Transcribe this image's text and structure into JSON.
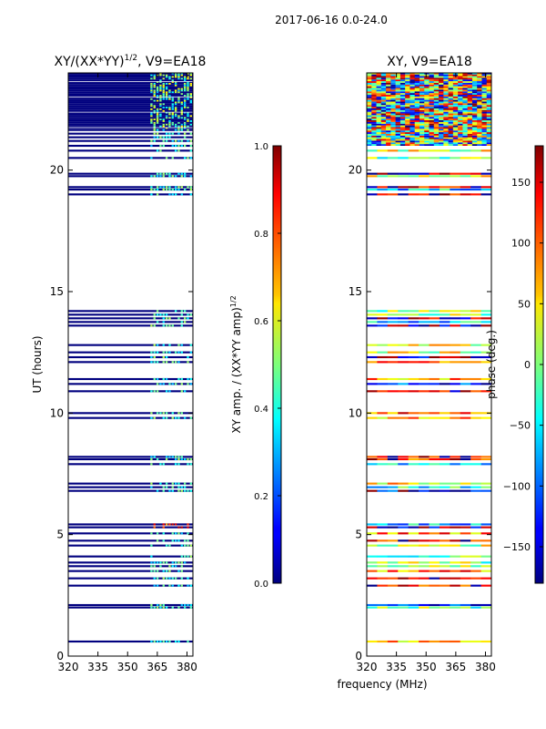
{
  "figure_title": "2017-06-16 0.0-24.0",
  "colors": {
    "background": "#ffffff",
    "deep_blue": "#00007f",
    "cyan": "#00ffff",
    "yellow": "#ffff00",
    "red": "#ff0000"
  },
  "chart_data": [
    {
      "type": "heatmap",
      "title_main": "XY/(XX*YY)",
      "title_sup": "1/2",
      "title_suffix": ", V9=EA18",
      "xlabel": "",
      "ylabel": "UT (hours)",
      "xlim": [
        320,
        383
      ],
      "ylim": [
        0,
        24
      ],
      "xticks": [
        320,
        335,
        350,
        365,
        380
      ],
      "yticks": [
        0,
        5,
        10,
        15,
        20
      ],
      "colorbar": {
        "label": "XY amp. / (XX*YY amp)",
        "label_sup": "1/2",
        "range": [
          0.0,
          1.0
        ],
        "ticks": [
          "0.0",
          "0.2",
          "0.4",
          "0.6",
          "0.8",
          "1.0"
        ],
        "colormap": "jet"
      },
      "dense_block_hours": [
        21.7,
        24.0
      ],
      "observed_ut_hours": [
        0.6,
        2.0,
        2.1,
        2.9,
        3.2,
        3.5,
        3.7,
        3.85,
        4.1,
        4.55,
        4.75,
        5.05,
        5.3,
        5.42,
        6.8,
        6.95,
        7.1,
        7.9,
        8.1,
        8.2,
        9.8,
        10.0,
        10.9,
        11.2,
        11.4,
        12.1,
        12.3,
        12.5,
        12.8,
        13.6,
        13.75,
        13.9,
        14.05,
        14.2,
        19.0,
        19.2,
        19.3,
        19.75,
        19.85,
        20.5,
        20.8,
        21.0,
        21.2,
        21.35,
        21.5,
        21.65
      ]
    },
    {
      "type": "heatmap",
      "title": "XY, V9=EA18",
      "xlabel": "frequency (MHz)",
      "ylabel": "",
      "xlim": [
        320,
        383
      ],
      "ylim": [
        0,
        24
      ],
      "xticks": [
        320,
        335,
        350,
        365,
        380
      ],
      "yticks": [
        0,
        5,
        10,
        15,
        20
      ],
      "colorbar": {
        "label": "phase (deg.)",
        "range": [
          -180,
          180
        ],
        "ticks": [
          "150",
          "100",
          "50",
          "0",
          "−50",
          "−100",
          "−150"
        ],
        "colormap": "jet"
      },
      "dense_block_hours": [
        21.0,
        24.0
      ],
      "observed_ut_hours": [
        0.6,
        2.0,
        2.1,
        2.9,
        3.2,
        3.5,
        3.7,
        3.85,
        4.1,
        4.55,
        4.75,
        5.05,
        5.3,
        5.42,
        6.8,
        6.95,
        7.1,
        7.9,
        8.1,
        8.2,
        9.8,
        10.0,
        10.9,
        11.2,
        11.4,
        12.1,
        12.3,
        12.5,
        12.8,
        13.6,
        13.75,
        13.9,
        14.05,
        14.2,
        19.0,
        19.2,
        19.3,
        19.75,
        19.85,
        20.5,
        20.8
      ]
    }
  ]
}
